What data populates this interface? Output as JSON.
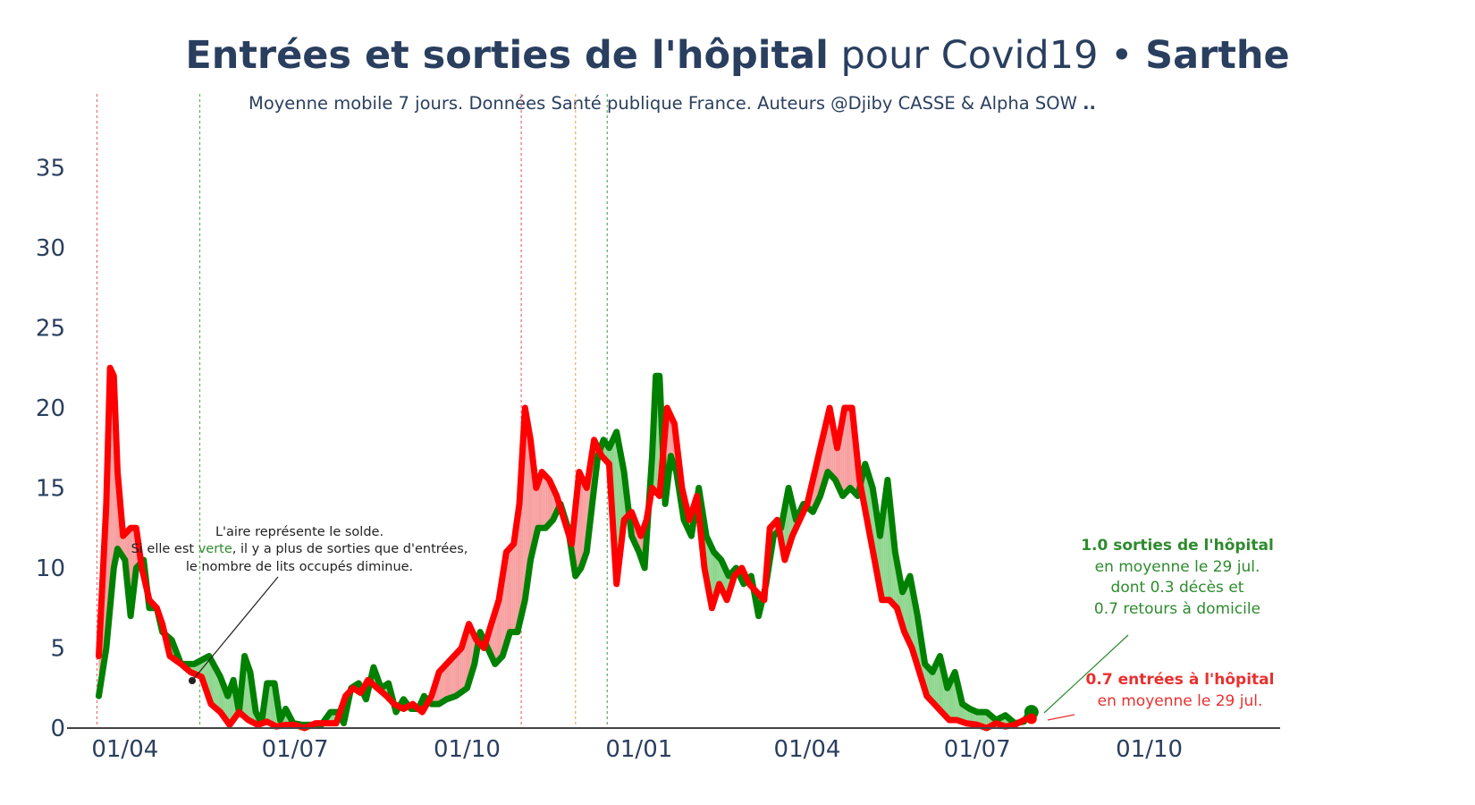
{
  "title": {
    "bold_part": "Entrées et sorties de l'hôpital",
    "normal_part": " pour Covid19 • ",
    "region": "Sarthe"
  },
  "subtitle": {
    "text": "Moyenne mobile 7 jours. Données Santé publique France. Auteurs @Djiby CASSE & Alpha SOW ",
    "suffix": ".."
  },
  "annotation_solde": {
    "line1": "L'aire représente le solde.",
    "line2_a": "Si elle est ",
    "line2_green": "verte",
    "line2_b": ", il y a plus de sorties que d'entrées,",
    "line3": "le nombre de lits occupés diminue."
  },
  "annotation_sorties": {
    "line1": "1.0 sorties de l'hôpital",
    "line2": "en moyenne le 29 jul.",
    "line3": "dont 0.3 décès et",
    "line4": "0.7 retours à domicile"
  },
  "annotation_entrees": {
    "line1": "0.7 entrées à l'hôpital",
    "line2": "en moyenne le 29 jul."
  },
  "colors": {
    "sorties": "#008000",
    "entrees": "#ff0000",
    "fill_green": "#8fd68f",
    "fill_red": "#f7a0a0",
    "title": "#2a3f5f"
  },
  "chart_data": {
    "type": "line",
    "x_unit": "date",
    "x_range": [
      "2020-03-01",
      "2021-12-10"
    ],
    "y_range": [
      0,
      39
    ],
    "y_ticks": [
      0,
      5,
      10,
      15,
      20,
      25,
      30,
      35
    ],
    "y_tick_labels": [
      "0",
      "5",
      "10",
      "15",
      "20",
      "25",
      "30",
      "35"
    ],
    "x_ticks": [
      "2020-04-01",
      "2020-07-01",
      "2020-10-01",
      "2021-01-01",
      "2021-04-01",
      "2021-07-01",
      "2021-10-01"
    ],
    "x_tick_labels": [
      "01/04",
      "01/07",
      "01/10",
      "01/01",
      "01/04",
      "01/07",
      "01/10"
    ],
    "vertical_lines": [
      {
        "date": "2020-03-17",
        "color": "red"
      },
      {
        "date": "2020-05-11",
        "color": "green"
      },
      {
        "date": "2020-10-30",
        "color": "red"
      },
      {
        "date": "2020-11-28",
        "color": "orange"
      },
      {
        "date": "2020-12-15",
        "color": "green"
      }
    ],
    "series": [
      {
        "name": "sorties",
        "color": "#008000",
        "points": [
          [
            "2020-03-18",
            2.0
          ],
          [
            "2020-03-22",
            5.0
          ],
          [
            "2020-03-26",
            10.0
          ],
          [
            "2020-03-28",
            11.2
          ],
          [
            "2020-04-01",
            10.5
          ],
          [
            "2020-04-04",
            7.0
          ],
          [
            "2020-04-07",
            10.0
          ],
          [
            "2020-04-11",
            10.5
          ],
          [
            "2020-04-14",
            7.5
          ],
          [
            "2020-04-18",
            7.5
          ],
          [
            "2020-04-21",
            6.0
          ],
          [
            "2020-04-26",
            5.5
          ],
          [
            "2020-05-01",
            4.0
          ],
          [
            "2020-05-08",
            4.0
          ],
          [
            "2020-05-16",
            4.5
          ],
          [
            "2020-05-22",
            3.2
          ],
          [
            "2020-05-26",
            2.0
          ],
          [
            "2020-05-29",
            3.0
          ],
          [
            "2020-06-01",
            1.0
          ],
          [
            "2020-06-04",
            4.5
          ],
          [
            "2020-06-07",
            3.5
          ],
          [
            "2020-06-10",
            1.0
          ],
          [
            "2020-06-13",
            0.3
          ],
          [
            "2020-06-16",
            2.8
          ],
          [
            "2020-06-20",
            2.8
          ],
          [
            "2020-06-23",
            0.5
          ],
          [
            "2020-06-26",
            1.2
          ],
          [
            "2020-06-30",
            0.3
          ],
          [
            "2020-07-05",
            0.2
          ],
          [
            "2020-07-10",
            0.2
          ],
          [
            "2020-07-15",
            0.2
          ],
          [
            "2020-07-20",
            1.0
          ],
          [
            "2020-07-24",
            1.0
          ],
          [
            "2020-07-27",
            0.3
          ],
          [
            "2020-07-31",
            2.5
          ],
          [
            "2020-08-04",
            2.8
          ],
          [
            "2020-08-08",
            1.8
          ],
          [
            "2020-08-12",
            3.8
          ],
          [
            "2020-08-16",
            2.5
          ],
          [
            "2020-08-20",
            2.8
          ],
          [
            "2020-08-24",
            1.0
          ],
          [
            "2020-08-28",
            1.8
          ],
          [
            "2020-09-01",
            1.2
          ],
          [
            "2020-09-05",
            1.2
          ],
          [
            "2020-09-08",
            2.0
          ],
          [
            "2020-09-12",
            1.5
          ],
          [
            "2020-09-16",
            1.5
          ],
          [
            "2020-09-20",
            1.8
          ],
          [
            "2020-09-25",
            2.0
          ],
          [
            "2020-10-01",
            2.5
          ],
          [
            "2020-10-05",
            4.0
          ],
          [
            "2020-10-08",
            6.0
          ],
          [
            "2020-10-12",
            5.0
          ],
          [
            "2020-10-16",
            4.0
          ],
          [
            "2020-10-20",
            4.5
          ],
          [
            "2020-10-24",
            6.0
          ],
          [
            "2020-10-28",
            6.0
          ],
          [
            "2020-11-01",
            8.0
          ],
          [
            "2020-11-04",
            10.5
          ],
          [
            "2020-11-08",
            12.5
          ],
          [
            "2020-11-12",
            12.5
          ],
          [
            "2020-11-16",
            13.0
          ],
          [
            "2020-11-20",
            14.0
          ],
          [
            "2020-11-24",
            12.5
          ],
          [
            "2020-11-28",
            9.5
          ],
          [
            "2020-12-01",
            10.0
          ],
          [
            "2020-12-04",
            11.0
          ],
          [
            "2020-12-07",
            14.0
          ],
          [
            "2020-12-10",
            17.0
          ],
          [
            "2020-12-13",
            18.0
          ],
          [
            "2020-12-16",
            17.5
          ],
          [
            "2020-12-20",
            18.5
          ],
          [
            "2020-12-24",
            16.0
          ],
          [
            "2020-12-28",
            12.0
          ],
          [
            "2021-01-01",
            11.0
          ],
          [
            "2021-01-04",
            10.0
          ],
          [
            "2021-01-08",
            17.0
          ],
          [
            "2021-01-10",
            22.0
          ],
          [
            "2021-01-12",
            22.0
          ],
          [
            "2021-01-15",
            14.0
          ],
          [
            "2021-01-18",
            17.0
          ],
          [
            "2021-01-21",
            16.0
          ],
          [
            "2021-01-25",
            13.0
          ],
          [
            "2021-01-29",
            12.0
          ],
          [
            "2021-02-02",
            15.0
          ],
          [
            "2021-02-06",
            12.0
          ],
          [
            "2021-02-10",
            11.0
          ],
          [
            "2021-02-14",
            10.5
          ],
          [
            "2021-02-18",
            9.5
          ],
          [
            "2021-02-22",
            10.0
          ],
          [
            "2021-02-26",
            9.0
          ],
          [
            "2021-03-02",
            9.5
          ],
          [
            "2021-03-06",
            7.0
          ],
          [
            "2021-03-10",
            9.0
          ],
          [
            "2021-03-14",
            12.0
          ],
          [
            "2021-03-18",
            12.5
          ],
          [
            "2021-03-22",
            15.0
          ],
          [
            "2021-03-26",
            13.0
          ],
          [
            "2021-03-30",
            14.0
          ],
          [
            "2021-04-04",
            13.5
          ],
          [
            "2021-04-08",
            14.5
          ],
          [
            "2021-04-12",
            16.0
          ],
          [
            "2021-04-16",
            15.5
          ],
          [
            "2021-04-20",
            14.5
          ],
          [
            "2021-04-24",
            15.0
          ],
          [
            "2021-04-28",
            14.5
          ],
          [
            "2021-05-02",
            16.5
          ],
          [
            "2021-05-06",
            15.0
          ],
          [
            "2021-05-10",
            12.0
          ],
          [
            "2021-05-14",
            15.5
          ],
          [
            "2021-05-18",
            11.0
          ],
          [
            "2021-05-22",
            8.5
          ],
          [
            "2021-05-26",
            9.5
          ],
          [
            "2021-05-30",
            7.0
          ],
          [
            "2021-06-03",
            4.0
          ],
          [
            "2021-06-07",
            3.5
          ],
          [
            "2021-06-11",
            4.5
          ],
          [
            "2021-06-15",
            2.5
          ],
          [
            "2021-06-19",
            3.5
          ],
          [
            "2021-06-23",
            1.5
          ],
          [
            "2021-06-27",
            1.2
          ],
          [
            "2021-07-01",
            1.0
          ],
          [
            "2021-07-06",
            1.0
          ],
          [
            "2021-07-11",
            0.5
          ],
          [
            "2021-07-16",
            0.8
          ],
          [
            "2021-07-21",
            0.3
          ],
          [
            "2021-07-26",
            0.4
          ],
          [
            "2021-07-29",
            1.0
          ]
        ]
      },
      {
        "name": "entrées",
        "color": "#ff0000",
        "points": [
          [
            "2020-03-18",
            4.5
          ],
          [
            "2020-03-22",
            14.0
          ],
          [
            "2020-03-24",
            22.5
          ],
          [
            "2020-03-26",
            22.0
          ],
          [
            "2020-03-28",
            16.0
          ],
          [
            "2020-03-31",
            12.0
          ],
          [
            "2020-04-04",
            12.5
          ],
          [
            "2020-04-07",
            12.5
          ],
          [
            "2020-04-10",
            10.0
          ],
          [
            "2020-04-14",
            8.0
          ],
          [
            "2020-04-18",
            7.5
          ],
          [
            "2020-04-21",
            6.5
          ],
          [
            "2020-04-25",
            4.5
          ],
          [
            "2020-05-01",
            4.0
          ],
          [
            "2020-05-06",
            3.5
          ],
          [
            "2020-05-12",
            3.2
          ],
          [
            "2020-05-17",
            1.5
          ],
          [
            "2020-05-22",
            1.0
          ],
          [
            "2020-05-27",
            0.2
          ],
          [
            "2020-06-01",
            1.0
          ],
          [
            "2020-06-06",
            0.5
          ],
          [
            "2020-06-11",
            0.2
          ],
          [
            "2020-06-16",
            0.4
          ],
          [
            "2020-06-21",
            0.1
          ],
          [
            "2020-06-26",
            0.2
          ],
          [
            "2020-07-01",
            0.2
          ],
          [
            "2020-07-06",
            0.0
          ],
          [
            "2020-07-12",
            0.3
          ],
          [
            "2020-07-17",
            0.3
          ],
          [
            "2020-07-23",
            0.3
          ],
          [
            "2020-07-28",
            2.0
          ],
          [
            "2020-08-01",
            2.5
          ],
          [
            "2020-08-05",
            2.2
          ],
          [
            "2020-08-09",
            3.0
          ],
          [
            "2020-08-14",
            2.5
          ],
          [
            "2020-08-19",
            2.0
          ],
          [
            "2020-08-23",
            1.5
          ],
          [
            "2020-08-28",
            1.2
          ],
          [
            "2020-09-02",
            1.5
          ],
          [
            "2020-09-07",
            1.0
          ],
          [
            "2020-09-12",
            2.0
          ],
          [
            "2020-09-16",
            3.5
          ],
          [
            "2020-09-20",
            4.0
          ],
          [
            "2020-09-24",
            4.5
          ],
          [
            "2020-09-28",
            5.0
          ],
          [
            "2020-10-02",
            6.5
          ],
          [
            "2020-10-06",
            5.5
          ],
          [
            "2020-10-10",
            5.0
          ],
          [
            "2020-10-14",
            6.5
          ],
          [
            "2020-10-18",
            8.0
          ],
          [
            "2020-10-22",
            11.0
          ],
          [
            "2020-10-26",
            11.5
          ],
          [
            "2020-10-29",
            14.0
          ],
          [
            "2020-11-01",
            20.0
          ],
          [
            "2020-11-04",
            18.0
          ],
          [
            "2020-11-07",
            15.0
          ],
          [
            "2020-11-10",
            16.0
          ],
          [
            "2020-11-14",
            15.5
          ],
          [
            "2020-11-18",
            14.5
          ],
          [
            "2020-11-22",
            13.0
          ],
          [
            "2020-11-26",
            11.5
          ],
          [
            "2020-11-30",
            16.0
          ],
          [
            "2020-12-04",
            15.0
          ],
          [
            "2020-12-08",
            18.0
          ],
          [
            "2020-12-12",
            17.0
          ],
          [
            "2020-12-16",
            16.5
          ],
          [
            "2020-12-20",
            9.0
          ],
          [
            "2020-12-24",
            13.0
          ],
          [
            "2020-12-28",
            13.5
          ],
          [
            "2021-01-02",
            12.0
          ],
          [
            "2021-01-05",
            13.0
          ],
          [
            "2021-01-08",
            15.0
          ],
          [
            "2021-01-12",
            14.5
          ],
          [
            "2021-01-16",
            20.0
          ],
          [
            "2021-01-20",
            19.0
          ],
          [
            "2021-01-24",
            15.0
          ],
          [
            "2021-01-28",
            13.0
          ],
          [
            "2021-02-01",
            14.5
          ],
          [
            "2021-02-05",
            10.0
          ],
          [
            "2021-02-09",
            7.5
          ],
          [
            "2021-02-13",
            9.0
          ],
          [
            "2021-02-17",
            8.0
          ],
          [
            "2021-02-21",
            9.5
          ],
          [
            "2021-02-25",
            10.0
          ],
          [
            "2021-03-01",
            9.0
          ],
          [
            "2021-03-05",
            8.5
          ],
          [
            "2021-03-09",
            8.0
          ],
          [
            "2021-03-12",
            12.5
          ],
          [
            "2021-03-16",
            13.0
          ],
          [
            "2021-03-20",
            10.5
          ],
          [
            "2021-03-24",
            12.0
          ],
          [
            "2021-03-28",
            13.0
          ],
          [
            "2021-04-01",
            14.0
          ],
          [
            "2021-04-05",
            16.0
          ],
          [
            "2021-04-09",
            18.0
          ],
          [
            "2021-04-13",
            20.0
          ],
          [
            "2021-04-17",
            17.5
          ],
          [
            "2021-04-21",
            20.0
          ],
          [
            "2021-04-25",
            20.0
          ],
          [
            "2021-04-29",
            15.5
          ],
          [
            "2021-05-03",
            13.0
          ],
          [
            "2021-05-07",
            10.5
          ],
          [
            "2021-05-11",
            8.0
          ],
          [
            "2021-05-15",
            8.0
          ],
          [
            "2021-05-19",
            7.5
          ],
          [
            "2021-05-23",
            6.0
          ],
          [
            "2021-05-27",
            5.0
          ],
          [
            "2021-05-31",
            3.5
          ],
          [
            "2021-06-04",
            2.0
          ],
          [
            "2021-06-08",
            1.5
          ],
          [
            "2021-06-12",
            1.0
          ],
          [
            "2021-06-16",
            0.5
          ],
          [
            "2021-06-20",
            0.5
          ],
          [
            "2021-06-25",
            0.3
          ],
          [
            "2021-07-01",
            0.2
          ],
          [
            "2021-07-06",
            0.0
          ],
          [
            "2021-07-11",
            0.3
          ],
          [
            "2021-07-16",
            0.1
          ],
          [
            "2021-07-21",
            0.2
          ],
          [
            "2021-07-26",
            0.5
          ],
          [
            "2021-07-29",
            0.7
          ]
        ]
      }
    ]
  }
}
